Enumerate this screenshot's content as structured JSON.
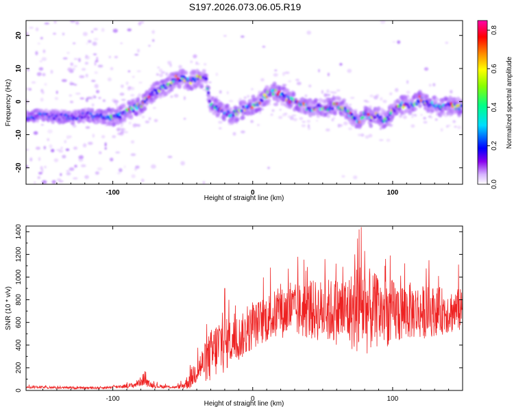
{
  "title": "S197.2026.073.06.05.R19",
  "chart_data": [
    {
      "type": "heatmap",
      "title": "S197.2026.073.06.05.R19",
      "xlabel": "Height of straight line (km)",
      "ylabel": "Frequency (Hz)",
      "xlim": [
        -162,
        150
      ],
      "ylim": [
        -25,
        24.5
      ],
      "x_ticks": [
        -100,
        0,
        100
      ],
      "y_ticks": [
        -20,
        -10,
        0,
        10,
        20
      ],
      "x_tick_labels": [
        "-100",
        "0",
        "100"
      ],
      "y_tick_labels": [
        "-20",
        "-10",
        "0",
        "10",
        "20"
      ],
      "ridge": {
        "x": [
          -162,
          -150,
          -140,
          -130,
          -120,
          -110,
          -100,
          -90,
          -80,
          -75,
          -70,
          -65,
          -60,
          -55,
          -50,
          -45,
          -40,
          -35,
          -33,
          -30,
          -25,
          -20,
          -15,
          -10,
          -5,
          0,
          5,
          10,
          15,
          20,
          25,
          30,
          35,
          40,
          45,
          50,
          55,
          60,
          65,
          68,
          70,
          72,
          75,
          80,
          85,
          90,
          95,
          100,
          105,
          110,
          115,
          120,
          125,
          130,
          135,
          140,
          145,
          150
        ],
        "y": [
          -5,
          -4,
          -4.5,
          -5,
          -4,
          -4.5,
          -5,
          -3,
          -1,
          1,
          3,
          4,
          5,
          7,
          7,
          6,
          7,
          7,
          6,
          -1,
          -2,
          -3,
          -4,
          -3,
          -2,
          -1,
          0,
          2,
          3,
          2,
          1,
          0,
          -1,
          -2,
          -2,
          -1.5,
          -2,
          -1,
          -2,
          -3,
          -4,
          -5,
          -6,
          -4,
          -5,
          -4,
          -6,
          -3,
          -1,
          -1,
          -1,
          1,
          -1,
          -1,
          -2,
          -1,
          -1.5,
          -2
        ]
      },
      "colorbar": {
        "label": "Normalized spectral amplitude",
        "range": [
          0,
          0.85
        ],
        "ticks": [
          0.0,
          0.2,
          0.4,
          0.6,
          0.8
        ],
        "tick_labels": [
          "0.0",
          "0.2",
          "0.4",
          "0.6",
          "0.8"
        ],
        "colors": [
          "#ffffff",
          "#cc99ff",
          "#6600ee",
          "#0000ff",
          "#00ffff",
          "#00ff66",
          "#ffff00",
          "#ff6600",
          "#ff0000",
          "#ff00aa"
        ]
      }
    },
    {
      "type": "line",
      "xlabel": "Height of straight line (km)",
      "ylabel": "SNR (10 * v/v)",
      "xlim": [
        -162,
        150
      ],
      "ylim": [
        0,
        1450
      ],
      "x_ticks": [
        -100,
        0,
        100
      ],
      "y_ticks": [
        0,
        200,
        400,
        600,
        800,
        1000,
        1200,
        1400
      ],
      "x_tick_labels": [
        "-100",
        "0",
        "100"
      ],
      "y_tick_labels": [
        "0",
        "200",
        "400",
        "600",
        "800",
        "1000",
        "1200",
        "1400"
      ],
      "series": [
        {
          "name": "SNR",
          "color": "#ee2222",
          "envelope_x": [
            -162,
            -140,
            -120,
            -105,
            -95,
            -90,
            -85,
            -80,
            -78,
            -75,
            -70,
            -60,
            -55,
            -50,
            -45,
            -40,
            -35,
            -30,
            -25,
            -22,
            -20,
            -15,
            -10,
            -5,
            0,
            5,
            10,
            15,
            20,
            25,
            30,
            40,
            50,
            60,
            70,
            75,
            78,
            80,
            85,
            90,
            95,
            100,
            105,
            110,
            115,
            120,
            130,
            140,
            150
          ],
          "envelope_mean": [
            30,
            25,
            22,
            25,
            35,
            40,
            45,
            80,
            100,
            60,
            40,
            30,
            28,
            40,
            90,
            180,
            240,
            300,
            380,
            420,
            400,
            430,
            460,
            500,
            560,
            600,
            640,
            660,
            680,
            700,
            700,
            710,
            700,
            700,
            700,
            720,
            760,
            720,
            700,
            700,
            690,
            680,
            690,
            700,
            700,
            690,
            700,
            700,
            700
          ],
          "envelope_amp": [
            12,
            10,
            10,
            12,
            15,
            20,
            25,
            40,
            60,
            30,
            20,
            12,
            10,
            30,
            80,
            120,
            160,
            240,
            260,
            300,
            240,
            200,
            200,
            200,
            200,
            200,
            220,
            220,
            220,
            240,
            240,
            260,
            280,
            300,
            340,
            400,
            450,
            420,
            350,
            320,
            300,
            300,
            280,
            260,
            250,
            240,
            220,
            200,
            200
          ],
          "peaks": [
            [
              -77,
              170
            ],
            [
              -20,
              900
            ],
            [
              -17,
              800
            ],
            [
              20,
              940
            ],
            [
              27,
              950
            ],
            [
              73,
              1200
            ],
            [
              75,
              1340
            ],
            [
              76,
              1420
            ],
            [
              80,
              1230
            ],
            [
              95,
              1160
            ],
            [
              147,
              1110
            ]
          ]
        }
      ]
    }
  ]
}
